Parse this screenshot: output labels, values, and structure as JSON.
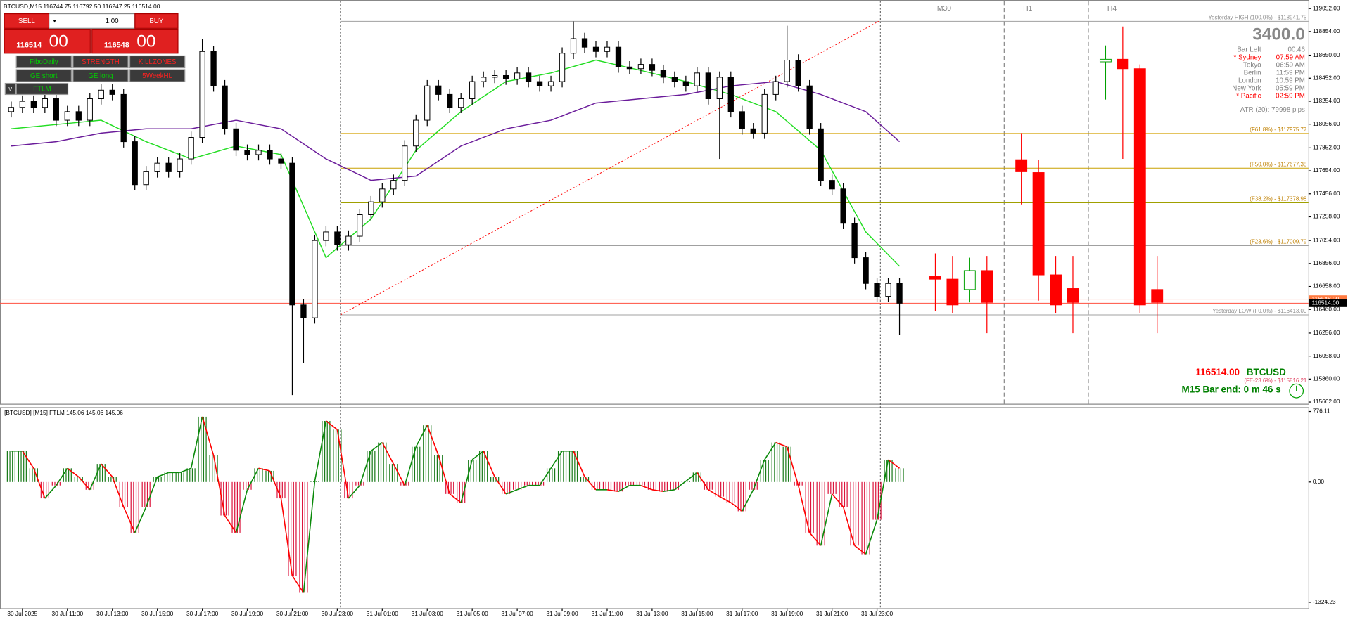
{
  "header": {
    "symbol_info": "BTCUSD,M15  116744.75 116792.50 116247.25 116514.00"
  },
  "trade_panel": {
    "sell": "SELL",
    "buy": "BUY",
    "lot": "1.00",
    "bid_main": "116514",
    "bid_small": "00",
    "ask_main": "116548",
    "ask_small": "00"
  },
  "buttons": [
    {
      "label": "FiboDaily",
      "color": "#00d000"
    },
    {
      "label": "STRENGTH",
      "color": "#ff2020"
    },
    {
      "label": "KILLZONES",
      "color": "#ff2020"
    },
    {
      "label": "GE short",
      "color": "#00d000"
    },
    {
      "label": "GE long",
      "color": "#00d000"
    },
    {
      "label": "5WeekHL",
      "color": "#ff2020"
    }
  ],
  "small_buttons": [
    "v",
    "FTLM"
  ],
  "info": {
    "range": "3400.0",
    "lines": [
      {
        "label": "Bar Left",
        "time": "00:46",
        "color": "#808080"
      },
      {
        "label": "* Sydney",
        "time": "07:59 AM",
        "color": "#ff0000"
      },
      {
        "label": "Tokyo",
        "time": "06:59 AM",
        "color": "#808080"
      },
      {
        "label": "Berlin",
        "time": "11:59 PM",
        "color": "#808080"
      },
      {
        "label": "London",
        "time": "10:59 PM",
        "color": "#808080"
      },
      {
        "label": "New York",
        "time": "05:59 PM",
        "color": "#808080"
      },
      {
        "label": "* Pacific",
        "time": "02:59 PM",
        "color": "#ff0000"
      }
    ],
    "atr": "ATR (20): 79998 pips"
  },
  "fibo_levels": [
    {
      "label": "Yesterday HIGH (100.0%) - $118941.75",
      "value": 118941.75,
      "color": "#a0a0a0",
      "label_color": "#909090",
      "style": "solid"
    },
    {
      "label": "(F61.8%) - $117975.77",
      "value": 117975.77,
      "color": "#d4a000",
      "label_color": "#c08000",
      "style": "solid"
    },
    {
      "label": "(F50.0%) - $117677.38",
      "value": 117677.38,
      "color": "#c8a000",
      "label_color": "#c08000",
      "style": "solid"
    },
    {
      "label": "(F38.2%) - $117378.98",
      "value": 117378.98,
      "color": "#a0a000",
      "label_color": "#c08000",
      "style": "solid"
    },
    {
      "label": "(F23.6%) - $117009.79",
      "value": 117009.79,
      "color": "#a0a0a0",
      "label_color": "#c08000",
      "style": "solid"
    },
    {
      "label": "Yesterday LOW (F0.0%) - $116413.00",
      "value": 116413.0,
      "color": "#a0a0a0",
      "label_color": "#909090",
      "style": "solid"
    },
    {
      "label": "(FE-23.6%) - $115816.21",
      "value": 115816.21,
      "color": "#d0508a",
      "label_color": "#e04060",
      "style": "dashdot"
    }
  ],
  "footer": {
    "price": "116514.00",
    "price_color": "#ff0000",
    "symbol": "BTCUSD",
    "symbol_color": "#008000",
    "bar_end": "M15 Bar end: 0 m 46 s",
    "bar_end_color": "#008000"
  },
  "chart_data": [
    {
      "type": "candlestick",
      "categories": [
        null,
        "30 Jul 2025",
        null,
        null,
        null,
        "30 Jul 11:00",
        null,
        null,
        null,
        "30 Jul 13:00",
        null,
        null,
        null,
        "30 Jul 15:00",
        null,
        null,
        null,
        "30 Jul 17:00",
        null,
        null,
        null,
        "30 Jul 19:00",
        null,
        null,
        null,
        "30 Jul 21:00",
        null,
        null,
        null,
        "30 Jul 23:00",
        null,
        null,
        null,
        "31 Jul 01:00",
        null,
        null,
        null,
        "31 Jul 03:00",
        null,
        null,
        null,
        "31 Jul 05:00",
        null,
        null,
        null,
        "31 Jul 07:00",
        null,
        null,
        null,
        "31 Jul 09:00",
        null,
        null,
        null,
        "31 Jul 11:00",
        null,
        null,
        null,
        "31 Jul 13:00",
        null,
        null,
        null,
        "31 Jul 15:00",
        null,
        null,
        null,
        "31 Jul 17:00",
        null,
        null,
        null,
        "31 Jul 19:00",
        null,
        null,
        null,
        "31 Jul 21:00",
        null,
        null,
        null,
        "31 Jul 23:00",
        null,
        null
      ],
      "open": [
        118164,
        118201,
        118253,
        118201,
        118275,
        118090,
        118164,
        118090,
        118275,
        118349,
        118312,
        117905,
        117535,
        117646,
        117720,
        117646,
        117757,
        117942,
        118682,
        118386,
        118016,
        117831,
        117794,
        117831,
        117757,
        117720,
        116499,
        116388,
        117054,
        117128,
        117017,
        117091,
        117276,
        117387,
        117498,
        117572,
        117868,
        118090,
        118386,
        118312,
        118201,
        118275,
        118423,
        118460,
        118475,
        118445,
        118497,
        118423,
        118386,
        118423,
        118667,
        118793,
        118719,
        118682,
        118719,
        118549,
        118534,
        118571,
        118519,
        118460,
        118423,
        118386,
        118497,
        118275,
        118460,
        118164,
        118016,
        117979,
        118312,
        118423,
        118608,
        118386,
        118016,
        117572,
        117498,
        117202,
        116906,
        116684,
        116573,
        116684
      ],
      "high": [
        118251,
        118303,
        118303,
        118325,
        118325,
        118214,
        118214,
        118325,
        118399,
        118399,
        118362,
        117955,
        117696,
        117770,
        117770,
        117807,
        117992,
        118793,
        118732,
        118436,
        118066,
        117881,
        117881,
        117881,
        117807,
        117770,
        116549,
        117104,
        117178,
        117178,
        117141,
        117326,
        117437,
        117548,
        117622,
        117918,
        118140,
        118436,
        118436,
        118362,
        118325,
        118473,
        118510,
        118525,
        118525,
        118547,
        118547,
        118473,
        118473,
        118717,
        118941,
        118843,
        118769,
        118769,
        118769,
        118599,
        118621,
        118621,
        118569,
        118510,
        118473,
        118547,
        118547,
        118510,
        118510,
        118214,
        118066,
        118362,
        118473,
        118904,
        118658,
        118436,
        118066,
        117622,
        117548,
        117252,
        116956,
        116734,
        116734,
        116734
      ],
      "low": [
        118114,
        118151,
        118151,
        118151,
        118040,
        118040,
        118040,
        118040,
        118225,
        118262,
        117855,
        117485,
        117485,
        117596,
        117596,
        117596,
        117707,
        117892,
        118336,
        117966,
        117781,
        117744,
        117744,
        117707,
        117670,
        115722,
        116000,
        116338,
        117004,
        116967,
        116967,
        117041,
        117226,
        117337,
        117448,
        117522,
        117818,
        118040,
        118262,
        118151,
        118151,
        118225,
        118373,
        118410,
        118395,
        118395,
        118373,
        118336,
        118336,
        118373,
        118617,
        118669,
        118632,
        118632,
        118499,
        118484,
        118484,
        118469,
        118410,
        118373,
        118336,
        118336,
        118225,
        117757,
        118114,
        117966,
        117929,
        117929,
        118262,
        118373,
        118336,
        117966,
        117522,
        117448,
        117152,
        116856,
        116634,
        116523,
        116523,
        116240
      ],
      "close": [
        118201,
        118253,
        118201,
        118275,
        118090,
        118164,
        118090,
        118275,
        118349,
        118312,
        117905,
        117535,
        117646,
        117720,
        117646,
        117757,
        117942,
        118682,
        118386,
        118016,
        117831,
        117794,
        117831,
        117757,
        117720,
        116499,
        116388,
        117054,
        117128,
        117017,
        117091,
        117276,
        117387,
        117498,
        117572,
        117868,
        118090,
        118386,
        118312,
        118201,
        118275,
        118423,
        118460,
        118475,
        118445,
        118497,
        118423,
        118386,
        118423,
        118667,
        118793,
        118719,
        118682,
        118719,
        118549,
        118534,
        118571,
        118519,
        118460,
        118423,
        118386,
        118497,
        118275,
        118460,
        118164,
        118016,
        117979,
        118312,
        118423,
        118608,
        118386,
        118016,
        117572,
        117498,
        117202,
        116906,
        116684,
        116573,
        116684,
        116514
      ],
      "up_color": "#ffffff",
      "down_color": "#000000",
      "ribbons": [
        {
          "color": "#22dd22",
          "x": [
            0,
            4,
            8,
            12,
            16,
            20,
            24,
            28,
            32,
            36,
            40,
            44,
            48,
            52,
            56,
            60,
            64,
            68,
            72,
            76,
            79
          ],
          "values": [
            118016,
            118053,
            118090,
            117905,
            117757,
            117868,
            117794,
            116906,
            117239,
            117831,
            118164,
            118423,
            118497,
            118608,
            118519,
            118423,
            118312,
            118164,
            117831,
            117128,
            116832
          ]
        },
        {
          "color": "#6a1b9a",
          "x": [
            0,
            4,
            8,
            12,
            16,
            20,
            24,
            28,
            32,
            36,
            40,
            44,
            48,
            52,
            56,
            60,
            64,
            68,
            72,
            76,
            79
          ],
          "values": [
            117868,
            117905,
            117979,
            118016,
            118016,
            118090,
            118016,
            117757,
            117572,
            117609,
            117868,
            118016,
            118090,
            118238,
            118275,
            118312,
            118386,
            118423,
            118312,
            118164,
            117905
          ]
        }
      ],
      "mtf": [
        {
          "label": "M30",
          "open": [
            116743,
            116721,
            116632,
            116795
          ],
          "high": [
            116943,
            116921,
            116906,
            116921
          ],
          "low": [
            116447,
            116425,
            116521,
            116255
          ],
          "close": [
            116721,
            116499,
            116795,
            116521
          ]
        },
        {
          "label": "H1",
          "open": [
            117750,
            117639,
            116758,
            116640
          ],
          "high": [
            117979,
            117750,
            116921,
            116921
          ],
          "low": [
            117365,
            116536,
            116425,
            116255
          ],
          "close": [
            117646,
            116758,
            116499,
            116521
          ]
        },
        {
          "label": "H4",
          "open": [
            118593,
            118615,
            118534,
            116632
          ],
          "high": [
            118734,
            118897,
            118571,
            116921
          ],
          "low": [
            118268,
            117757,
            116425,
            116255
          ],
          "close": [
            118615,
            118534,
            116499,
            116521
          ]
        }
      ],
      "mtf_up_color": "#00a000",
      "mtf_down_color": "#ff0000",
      "bid": {
        "value": 116514,
        "label": "116514.00"
      },
      "ask": {
        "value": 116548,
        "label": "116548.00"
      },
      "ylim": [
        115647,
        119111
      ],
      "yticks": [
        {
          "value": 119052,
          "label": "119052.00"
        },
        {
          "value": 118854,
          "label": "118854.00"
        },
        {
          "value": 118650,
          "label": "118650.00"
        },
        {
          "value": 118452,
          "label": "118452.00"
        },
        {
          "value": 118254,
          "label": "118254.00"
        },
        {
          "value": 118056,
          "label": "118056.00"
        },
        {
          "value": 117852,
          "label": "117852.00"
        },
        {
          "value": 117654,
          "label": "117654.00"
        },
        {
          "value": 117456,
          "label": "117456.00"
        },
        {
          "value": 117258,
          "label": "117258.00"
        },
        {
          "value": 117054,
          "label": "117054.00"
        },
        {
          "value": 116856,
          "label": "116856.00"
        },
        {
          "value": 116658,
          "label": "116658.00"
        },
        {
          "value": 116460,
          "label": "116460.00"
        },
        {
          "value": 116256,
          "label": "116256.00"
        },
        {
          "value": 116058,
          "label": "116058.00"
        },
        {
          "value": 115860,
          "label": "115860.00"
        },
        {
          "value": 115662,
          "label": "115662.00"
        }
      ]
    },
    {
      "type": "bar",
      "title": "[BTCUSD] [M15] FTLM 145.06 145.06 145.06",
      "values": [
        341,
        341,
        151,
        -180,
        -38,
        151,
        57,
        -85,
        199,
        57,
        -274,
        -558,
        -274,
        57,
        104,
        104,
        151,
        719,
        293,
        -369,
        -558,
        -85,
        151,
        123,
        -180,
        -1031,
        -1220,
        9,
        672,
        577,
        -180,
        -38,
        341,
        435,
        199,
        -38,
        388,
        624,
        293,
        -132,
        -227,
        246,
        341,
        57,
        -132,
        -85,
        -38,
        -38,
        151,
        341,
        341,
        57,
        -85,
        -85,
        -104,
        -38,
        -38,
        -85,
        -104,
        -85,
        9,
        104,
        -85,
        -161,
        -227,
        -322,
        -85,
        246,
        435,
        388,
        -38,
        -558,
        -700,
        -132,
        -274,
        -700,
        -795,
        -416,
        246,
        151
      ],
      "up_color": "#1a7a1a",
      "down_color": "#dc143c",
      "ylim": [
        -1390,
        814
      ],
      "yticks": [
        {
          "value": 776.11,
          "label": "776.11"
        },
        {
          "value": 0,
          "label": "0.00"
        },
        {
          "value": -1324.23,
          "label": "-1324.23"
        }
      ]
    }
  ]
}
